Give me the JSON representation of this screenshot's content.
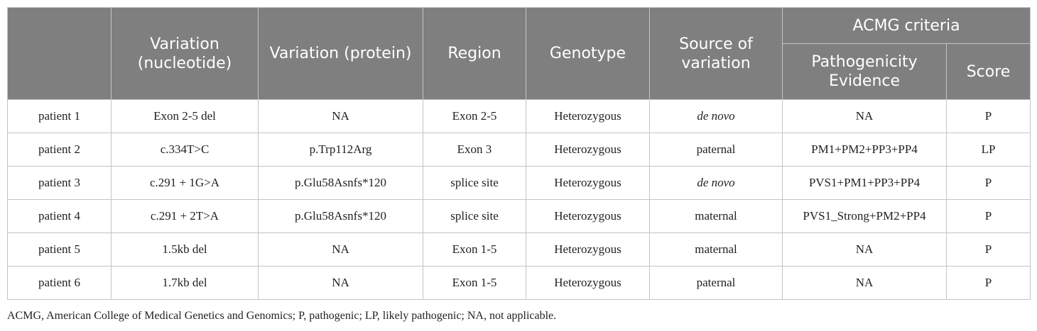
{
  "table": {
    "headers": {
      "blank": "",
      "variation_nucleotide": "Variation (nucleotide)",
      "variation_protein": "Variation (protein)",
      "region": "Region",
      "genotype": "Genotype",
      "source": "Source of variation",
      "acmg_group": "ACMG criteria",
      "evidence": "Pathogenicity Evidence",
      "score": "Score"
    },
    "rows": [
      {
        "patient": "patient 1",
        "nucleotide": "Exon 2-5 del",
        "protein": "NA",
        "region": "Exon 2-5",
        "genotype": "Heterozygous",
        "source": "de novo",
        "evidence": "NA",
        "score": "P"
      },
      {
        "patient": "patient 2",
        "nucleotide": "c.334T>C",
        "protein": "p.Trp112Arg",
        "region": "Exon 3",
        "genotype": "Heterozygous",
        "source": "paternal",
        "evidence": "PM1+PM2+PP3+PP4",
        "score": "LP"
      },
      {
        "patient": "patient 3",
        "nucleotide": "c.291 + 1G>A",
        "protein": "p.Glu58Asnfs*120",
        "region": "splice site",
        "genotype": "Heterozygous",
        "source": "de novo",
        "evidence": "PVS1+PM1+PP3+PP4",
        "score": "P"
      },
      {
        "patient": "patient 4",
        "nucleotide": "c.291 + 2T>A",
        "protein": "p.Glu58Asnfs*120",
        "region": "splice site",
        "genotype": "Heterozygous",
        "source": "maternal",
        "evidence": "PVS1_Strong+PM2+PP4",
        "score": "P"
      },
      {
        "patient": "patient 5",
        "nucleotide": "1.5kb del",
        "protein": "NA",
        "region": "Exon 1-5",
        "genotype": "Heterozygous",
        "source": "maternal",
        "evidence": "NA",
        "score": "P"
      },
      {
        "patient": "patient 6",
        "nucleotide": "1.7kb del",
        "protein": "NA",
        "region": "Exon 1-5",
        "genotype": "Heterozygous",
        "source": "paternal",
        "evidence": "NA",
        "score": "P"
      }
    ]
  },
  "footnote": "ACMG, American College of Medical Genetics and Genomics; P, pathogenic; LP, likely pathogenic; NA, not applicable."
}
